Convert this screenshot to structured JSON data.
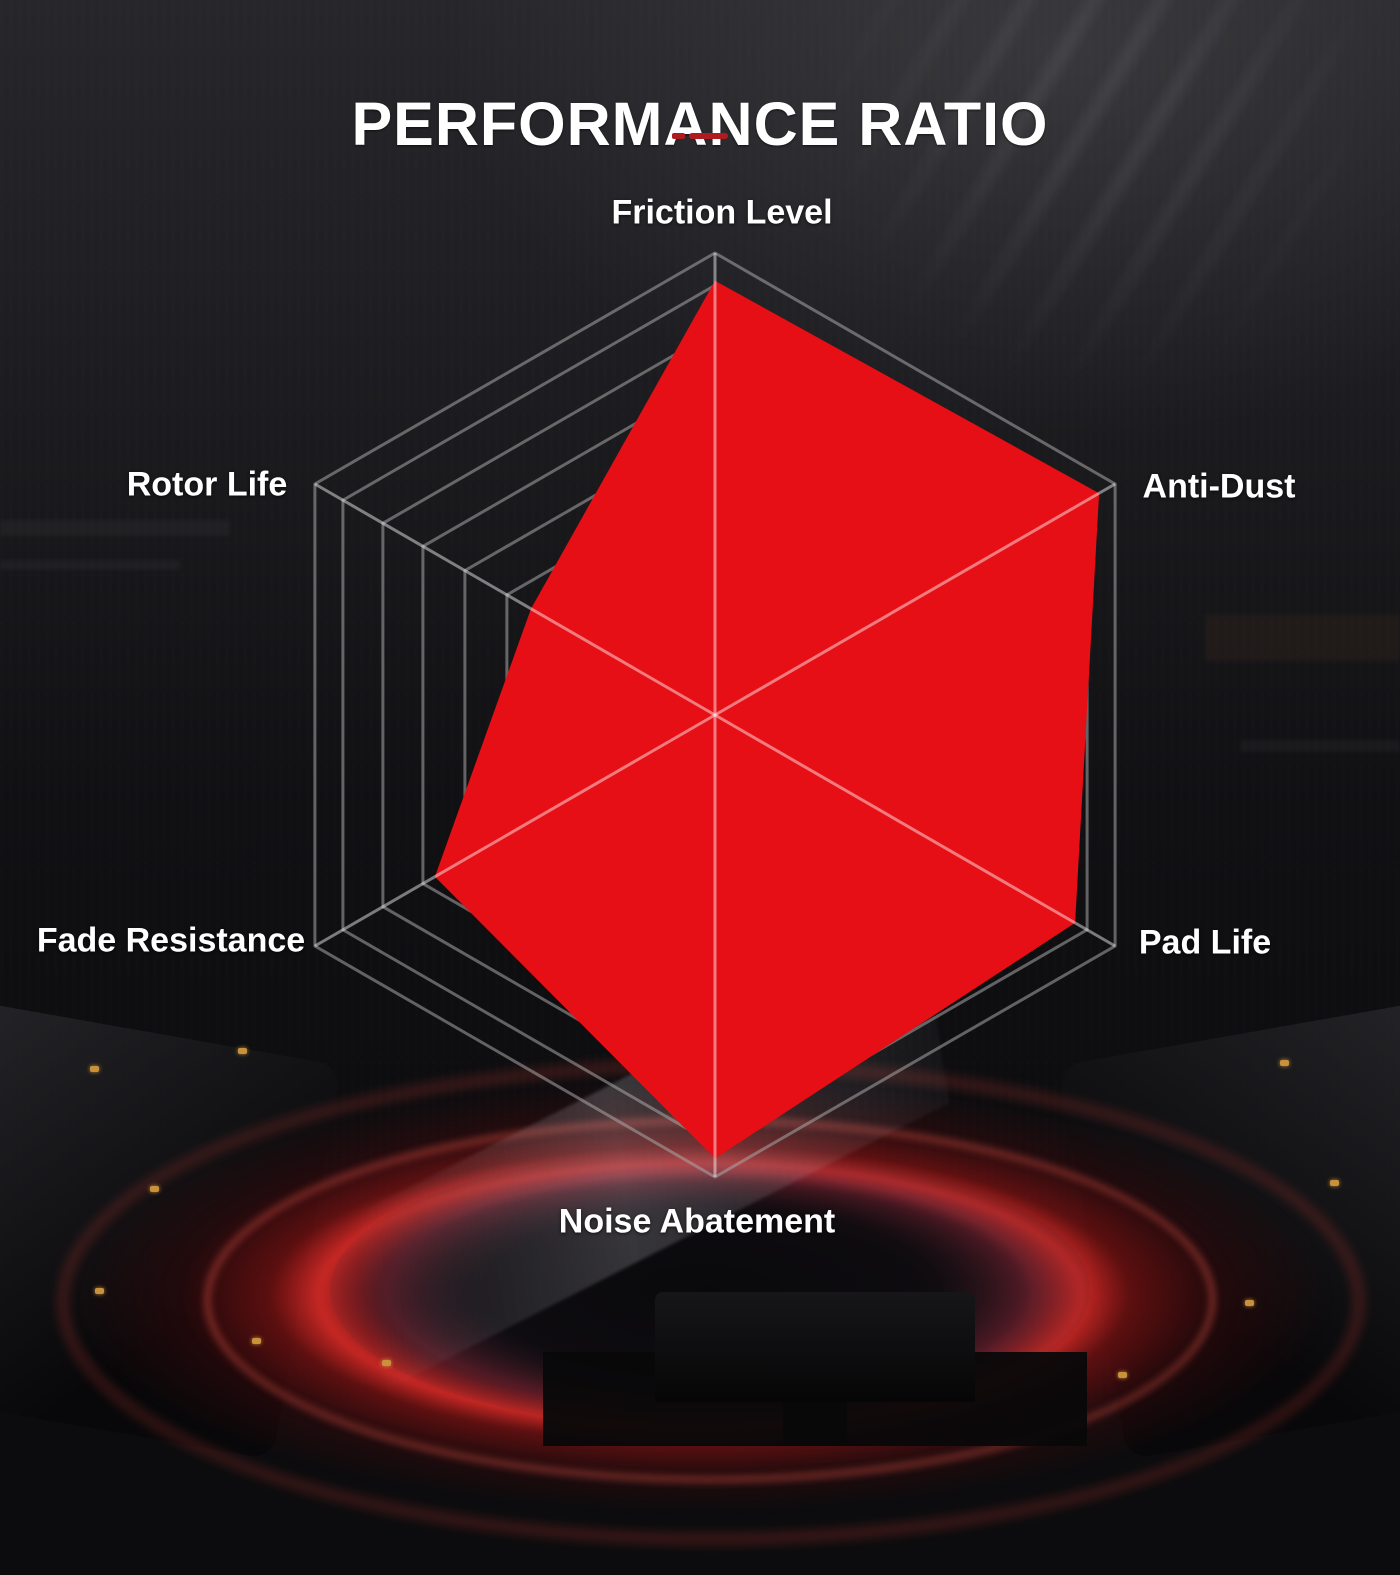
{
  "title": "PERFORMANCE RATIO",
  "divider": {
    "color": "#b01b1f"
  },
  "chart_data": {
    "type": "radar",
    "title": "PERFORMANCE RATIO",
    "axes": [
      {
        "label": "Friction Level",
        "value": 0.94
      },
      {
        "label": "Anti-Dust",
        "value": 0.96
      },
      {
        "label": "Pad Life",
        "value": 0.9
      },
      {
        "label": "Noise Abatement",
        "value": 0.96
      },
      {
        "label": "Fade Resistance",
        "value": 0.7
      },
      {
        "label": "Rotor Life",
        "value": 0.46
      }
    ],
    "scale": {
      "min": 0,
      "max": 1
    },
    "ring_fractions": [
      1.0,
      0.93,
      0.83,
      0.73,
      0.625,
      0.52
    ],
    "series_color": "#e50f15",
    "grid_color": "rgba(168,168,168,0.55)",
    "spoke_color": "rgba(255,255,255,0.45)",
    "legend": "none",
    "grid": "on"
  }
}
